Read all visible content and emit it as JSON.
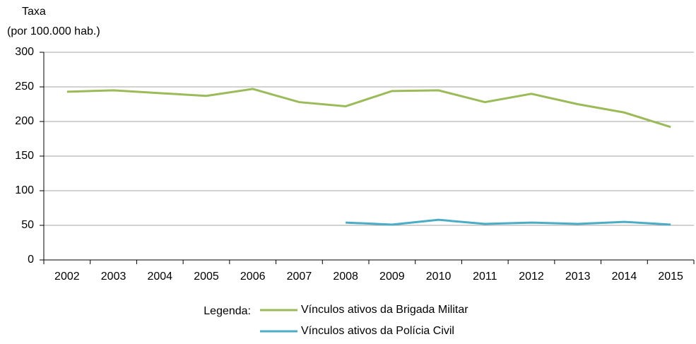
{
  "chart_data": {
    "type": "line",
    "y_label": [
      "Taxa",
      "(por 100.000 hab.)"
    ],
    "categories": [
      "2002",
      "2003",
      "2004",
      "2005",
      "2006",
      "2007",
      "2008",
      "2009",
      "2010",
      "2011",
      "2012",
      "2013",
      "2014",
      "2015"
    ],
    "series": [
      {
        "name": "Vínculos ativos da Brigada Militar",
        "color": "#9bbb59",
        "values": [
          243,
          245,
          241,
          237,
          247,
          228,
          222,
          244,
          245,
          228,
          240,
          225,
          213,
          192
        ]
      },
      {
        "name": "Vínculos ativos da Polícia Civil",
        "color": "#4bacc6",
        "values": [
          null,
          null,
          null,
          null,
          null,
          null,
          54,
          51,
          58,
          52,
          54,
          52,
          55,
          51
        ]
      }
    ],
    "ylim": [
      0,
      300
    ],
    "yticks": [
      0,
      50,
      100,
      150,
      200,
      250,
      300
    ],
    "grid": true,
    "legend_title": "Legenda:",
    "legend_position": "bottom"
  }
}
